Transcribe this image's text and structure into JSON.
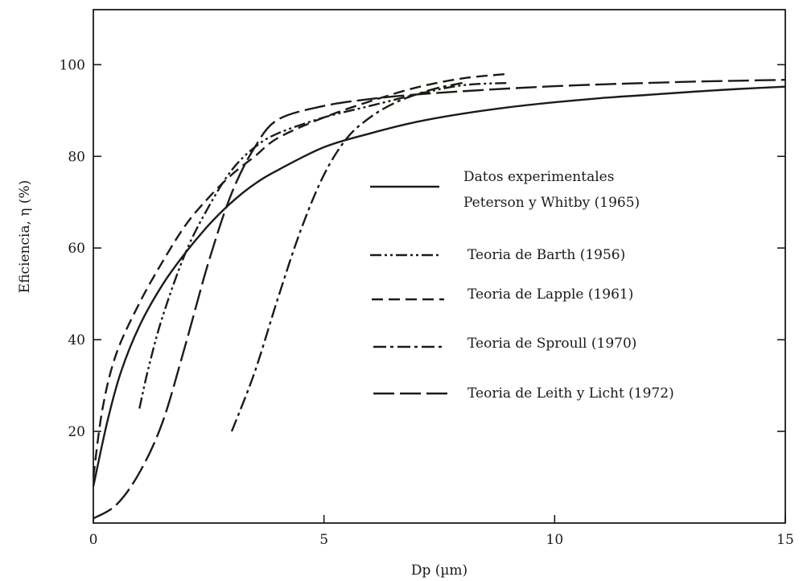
{
  "chart_data": {
    "type": "line",
    "xlabel": "Dp (µm)",
    "ylabel": "Eficiencia, η (%)",
    "xlim": [
      0,
      15
    ],
    "ylim": [
      0,
      112
    ],
    "x_ticks": [
      0,
      5,
      10,
      15
    ],
    "y_ticks": [
      20,
      40,
      60,
      80,
      100
    ],
    "grid": false,
    "legend_position": "center-right",
    "series": [
      {
        "name": "Datos experimentales Peterson y Whitby (1965)",
        "legend_lines": [
          "Datos experimentales",
          "Peterson y Whitby (1965)"
        ],
        "style": "solid",
        "dash": "",
        "x": [
          0,
          0.3,
          0.6,
          1,
          1.5,
          2,
          2.5,
          3,
          3.5,
          4,
          5,
          6,
          7,
          8,
          9,
          10,
          11,
          12,
          13,
          14,
          15
        ],
        "y": [
          8,
          22,
          33,
          43,
          52,
          59,
          65,
          70,
          74,
          77,
          82,
          85,
          87.5,
          89.3,
          90.7,
          91.8,
          92.7,
          93.4,
          94.1,
          94.7,
          95.2
        ]
      },
      {
        "name": "Teoria de Barth (1956)",
        "style": "dash-dot-dot",
        "dash": "14,4,3,4,3,4",
        "x": [
          1,
          1.2,
          1.5,
          2,
          2.5,
          3,
          3.5,
          4,
          5,
          6,
          7,
          8,
          9
        ],
        "y": [
          25,
          34,
          45,
          59,
          69,
          77,
          82,
          85,
          88.5,
          91,
          93.5,
          95.5,
          96
        ]
      },
      {
        "name": "Teoria de Lapple (1961)",
        "style": "dashed",
        "dash": "14,7",
        "x": [
          0,
          0.2,
          0.5,
          1,
          1.5,
          2,
          2.5,
          3,
          3.5,
          4,
          5,
          6,
          7,
          8,
          9
        ],
        "y": [
          10,
          25,
          37,
          48,
          57,
          65,
          71,
          76,
          80,
          84,
          88.5,
          92,
          95,
          97,
          98
        ]
      },
      {
        "name": "Teoria de Sproull (1970)",
        "style": "dash-dot",
        "dash": "16,5,4,5",
        "x": [
          3,
          3.5,
          4,
          4.5,
          5,
          5.5,
          6,
          6.5,
          7,
          7.5,
          8
        ],
        "y": [
          20,
          33,
          49,
          64,
          76,
          84,
          88.5,
          91.5,
          93.5,
          95,
          96
        ]
      },
      {
        "name": "Teoria de Leith y Licht (1972)",
        "style": "long-dash",
        "dash": "26,7",
        "x": [
          0,
          0.5,
          1,
          1.5,
          2,
          2.5,
          3,
          3.5,
          4,
          5,
          6,
          7,
          8,
          9,
          10,
          11,
          12,
          13,
          14,
          15
        ],
        "y": [
          1,
          4,
          11,
          22,
          39,
          57,
          72,
          82,
          88,
          91,
          92.5,
          93.5,
          94.2,
          94.8,
          95.3,
          95.7,
          96,
          96.3,
          96.5,
          96.7
        ]
      }
    ]
  }
}
